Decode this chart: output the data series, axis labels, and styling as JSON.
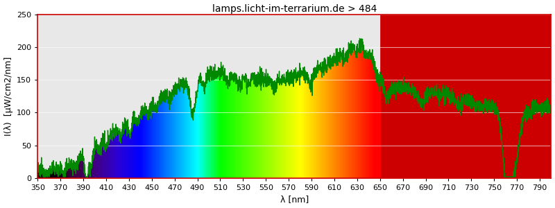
{
  "title": "lamps.licht-im-terrarium.de > 484",
  "xlabel": "λ [nm]",
  "ylabel": "I(λ)  [μW/cm2/nm]",
  "xlim": [
    350,
    800
  ],
  "ylim": [
    0,
    250
  ],
  "yticks": [
    0,
    50,
    100,
    150,
    200,
    250
  ],
  "xticks": [
    350,
    370,
    390,
    410,
    430,
    450,
    470,
    490,
    510,
    530,
    550,
    570,
    590,
    610,
    630,
    650,
    670,
    690,
    710,
    730,
    750,
    770,
    790
  ],
  "title_fontsize": 10,
  "label_fontsize": 9,
  "tick_fontsize": 8,
  "line_color": "#008800",
  "line_width": 1.0,
  "background_color": "#ffffff",
  "plot_bg_color": "#e8e8e8",
  "ir_color": "#cc0000",
  "ir_start": 650,
  "border_color": "#cc0000",
  "seed": 12345
}
